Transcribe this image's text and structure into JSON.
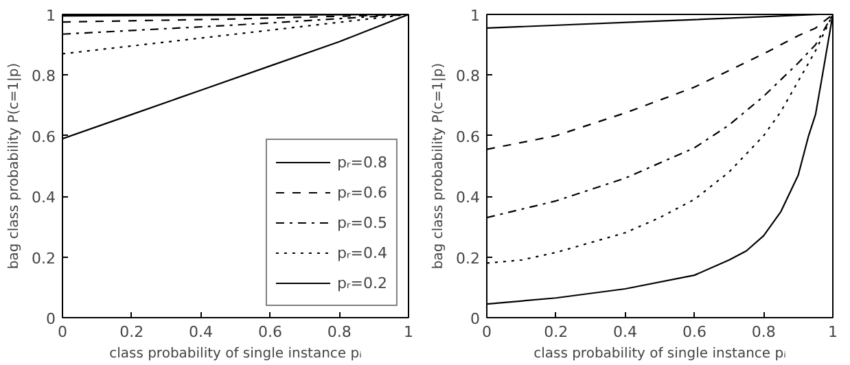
{
  "chart_data": [
    {
      "type": "line",
      "xlabel": "class probability of single instance pᵢ",
      "ylabel": "bag class probability P(c=1|p)",
      "xlim": [
        0,
        1
      ],
      "ylim": [
        0,
        1
      ],
      "xticks": [
        0,
        0.2,
        0.4,
        0.6,
        0.8,
        1
      ],
      "yticks": [
        0,
        0.2,
        0.4,
        0.6,
        0.8,
        1
      ],
      "grid": false,
      "legend": "bottom right",
      "series": [
        {
          "name": "pᵣ=0.8",
          "color": "#000000",
          "line_style": "solid",
          "x": [
            0,
            1
          ],
          "values": [
            0.995,
            1
          ]
        },
        {
          "name": "pᵣ=0.6",
          "color": "#000000",
          "line_style": "dashed",
          "x": [
            0,
            0.5,
            1
          ],
          "values": [
            0.975,
            0.985,
            1
          ]
        },
        {
          "name": "pᵣ=0.5",
          "color": "#000000",
          "line_style": "dashdot",
          "x": [
            0,
            0.5,
            1
          ],
          "values": [
            0.935,
            0.965,
            1
          ]
        },
        {
          "name": "pᵣ=0.4",
          "color": "#000000",
          "line_style": "dotted",
          "x": [
            0,
            0.5,
            1
          ],
          "values": [
            0.87,
            0.935,
            1
          ]
        },
        {
          "name": "pᵣ=0.2",
          "color": "#000000",
          "line_style": "solid",
          "x": [
            0,
            0.2,
            0.4,
            0.6,
            0.8,
            1
          ],
          "values": [
            0.59,
            0.67,
            0.75,
            0.83,
            0.91,
            1
          ]
        }
      ]
    },
    {
      "type": "line",
      "xlabel": "class probability of single instance pᵢ",
      "ylabel": "bag class probability P(c=1|p)",
      "xlim": [
        0,
        1
      ],
      "ylim": [
        0,
        1
      ],
      "xticks": [
        0,
        0.2,
        0.4,
        0.6,
        0.8,
        1
      ],
      "yticks": [
        0,
        0.2,
        0.4,
        0.6,
        0.8,
        1
      ],
      "grid": false,
      "legend": false,
      "series": [
        {
          "color": "#000000",
          "line_style": "solid",
          "x": [
            0,
            0.5,
            0.96,
            1
          ],
          "values": [
            0.955,
            0.978,
            1,
            1
          ]
        },
        {
          "color": "#000000",
          "line_style": "dashed",
          "x": [
            0,
            0.2,
            0.4,
            0.6,
            0.8,
            0.9,
            0.95,
            1
          ],
          "values": [
            0.555,
            0.6,
            0.675,
            0.76,
            0.87,
            0.93,
            0.955,
            1
          ]
        },
        {
          "color": "#000000",
          "line_style": "dashdot",
          "x": [
            0,
            0.2,
            0.4,
            0.6,
            0.7,
            0.8,
            0.9,
            0.95,
            1
          ],
          "values": [
            0.33,
            0.385,
            0.46,
            0.56,
            0.635,
            0.73,
            0.84,
            0.9,
            1
          ]
        },
        {
          "color": "#000000",
          "line_style": "dotted",
          "x": [
            0,
            0.1,
            0.2,
            0.4,
            0.5,
            0.6,
            0.7,
            0.8,
            0.85,
            0.9,
            0.95,
            1
          ],
          "values": [
            0.18,
            0.19,
            0.215,
            0.28,
            0.33,
            0.39,
            0.48,
            0.6,
            0.68,
            0.78,
            0.88,
            1
          ]
        },
        {
          "color": "#000000",
          "line_style": "solid",
          "x": [
            0,
            0.2,
            0.4,
            0.6,
            0.7,
            0.75,
            0.8,
            0.85,
            0.9,
            0.93,
            0.95,
            0.97,
            1
          ],
          "values": [
            0.045,
            0.065,
            0.095,
            0.14,
            0.19,
            0.22,
            0.27,
            0.35,
            0.47,
            0.6,
            0.67,
            0.8,
            1
          ]
        }
      ]
    }
  ]
}
